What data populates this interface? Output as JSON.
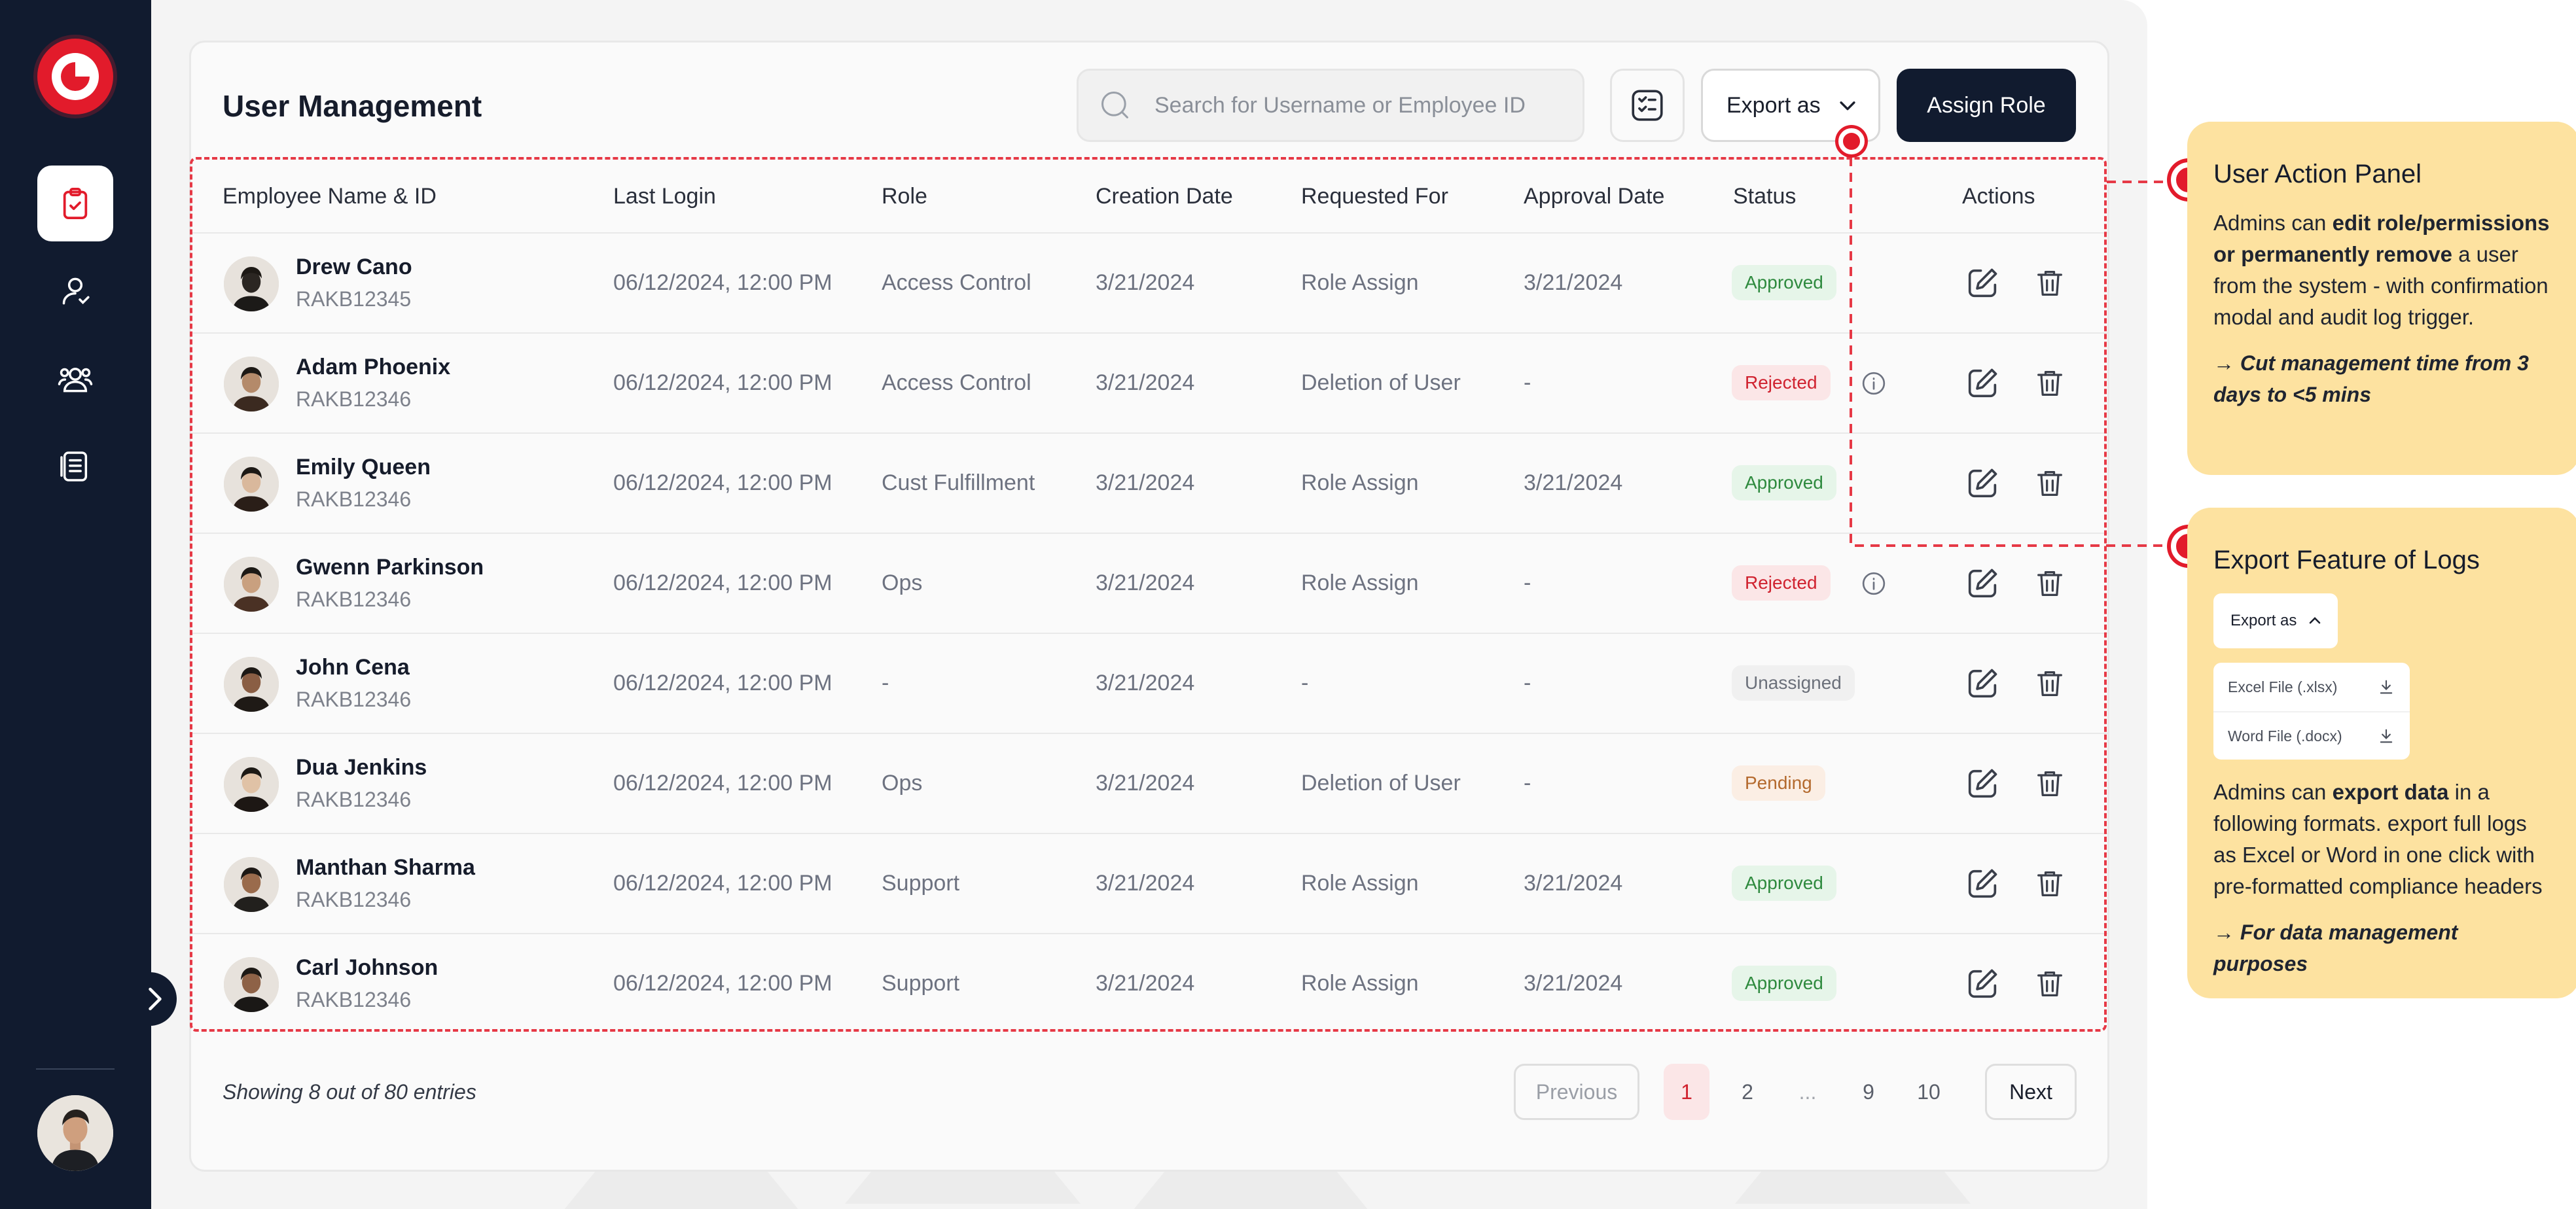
{
  "sidebar": {
    "nav": [
      {
        "name": "tasks",
        "icon": "clipboard-check-icon",
        "active": true
      },
      {
        "name": "user",
        "icon": "user-icon",
        "active": false
      },
      {
        "name": "users",
        "icon": "users-group-icon",
        "active": false
      },
      {
        "name": "logs",
        "icon": "document-list-icon",
        "active": false
      }
    ]
  },
  "header": {
    "title": "User Management",
    "search_placeholder": "Search for Username or Employee ID",
    "export_label": "Export as",
    "assign_label": "Assign Role"
  },
  "table": {
    "columns": [
      "Employee Name & ID",
      "Last Login",
      "Role",
      "Creation Date",
      "Requested For",
      "Approval Date",
      "Status",
      "Actions"
    ],
    "rows": [
      {
        "name": "Drew Cano",
        "id": "RAKB12345",
        "last_login": "06/12/2024, 12:00 PM",
        "role": "Access Control",
        "created": "3/21/2024",
        "requested": "Role Assign",
        "approved": "3/21/2024",
        "status": "Approved",
        "status_type": "approved",
        "info": false
      },
      {
        "name": "Adam Phoenix",
        "id": "RAKB12346",
        "last_login": "06/12/2024, 12:00 PM",
        "role": "Access Control",
        "created": "3/21/2024",
        "requested": "Deletion of User",
        "approved": "-",
        "status": "Rejected",
        "status_type": "rejected",
        "info": true
      },
      {
        "name": "Emily Queen",
        "id": "RAKB12346",
        "last_login": "06/12/2024, 12:00 PM",
        "role": "Cust Fulfillment",
        "created": "3/21/2024",
        "requested": "Role Assign",
        "approved": "3/21/2024",
        "status": "Approved",
        "status_type": "approved",
        "info": false
      },
      {
        "name": "Gwenn Parkinson",
        "id": "RAKB12346",
        "last_login": "06/12/2024, 12:00 PM",
        "role": "Ops",
        "created": "3/21/2024",
        "requested": "Role Assign",
        "approved": "-",
        "status": "Rejected",
        "status_type": "rejected",
        "info": true
      },
      {
        "name": "John Cena",
        "id": "RAKB12346",
        "last_login": "06/12/2024, 12:00 PM",
        "role": "-",
        "created": "3/21/2024",
        "requested": "-",
        "approved": "-",
        "status": "Unassigned",
        "status_type": "unassigned",
        "info": false
      },
      {
        "name": "Dua Jenkins",
        "id": "RAKB12346",
        "last_login": "06/12/2024, 12:00 PM",
        "role": "Ops",
        "created": "3/21/2024",
        "requested": "Deletion of User",
        "approved": "-",
        "status": "Pending",
        "status_type": "pending",
        "info": false
      },
      {
        "name": "Manthan Sharma",
        "id": "RAKB12346",
        "last_login": "06/12/2024, 12:00 PM",
        "role": "Support",
        "created": "3/21/2024",
        "requested": "Role Assign",
        "approved": "3/21/2024",
        "status": "Approved",
        "status_type": "approved",
        "info": false
      },
      {
        "name": "Carl Johnson",
        "id": "RAKB12346",
        "last_login": "06/12/2024, 12:00 PM",
        "role": "Support",
        "created": "3/21/2024",
        "requested": "Role Assign",
        "approved": "3/21/2024",
        "status": "Approved",
        "status_type": "approved",
        "info": false
      }
    ]
  },
  "footer": {
    "entries": "Showing 8 out of 80 entries",
    "previous": "Previous",
    "next": "Next",
    "pages": [
      "1",
      "2",
      "...",
      "9",
      "10"
    ],
    "current_page": "1"
  },
  "callouts": {
    "action": {
      "title": "User Action Panel",
      "text_a": "Admins can ",
      "text_b": "edit role/permissions or permanently remove",
      "text_c": " a user from the system - with confirmation modal and audit log trigger.",
      "note": "→ Cut management time from 3 days to <5 mins"
    },
    "export": {
      "title": "Export Feature of Logs",
      "dropdown_label": "Export as",
      "options": [
        "Excel File (.xlsx)",
        "Word File (.docx)"
      ],
      "text_a": "Admins can ",
      "text_b": "export data",
      "text_c": " in a following formats. export full logs as Excel or Word  in one click with pre-formatted compliance headers",
      "note": "→ For data management purposes"
    }
  },
  "colors": {
    "sidebar": "#111b2f",
    "brand_red": "#e21b2b",
    "callout_bg": "#fde2a0",
    "approved": "#2e8a3e",
    "rejected": "#d0222f",
    "pending": "#b46a2e"
  }
}
